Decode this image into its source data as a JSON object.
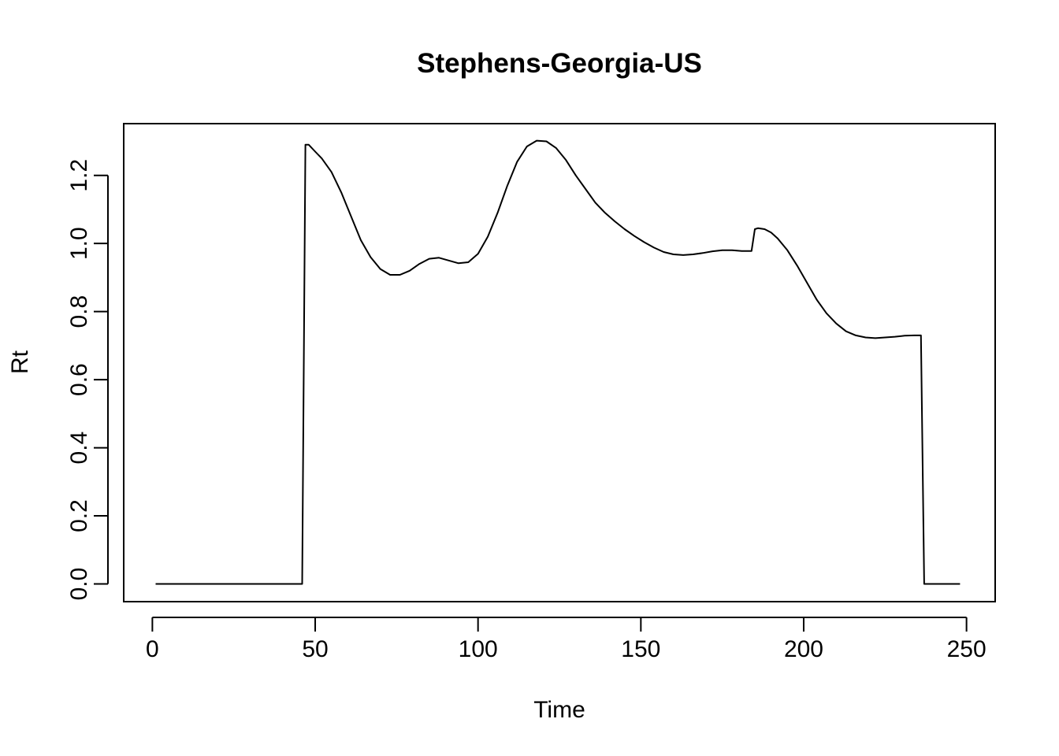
{
  "chart_data": {
    "type": "line",
    "title": "Stephens-Georgia-US",
    "xlabel": "Time",
    "ylabel": "Rt",
    "xlim": [
      -8.8,
      258.8
    ],
    "ylim": [
      -0.052,
      1.352
    ],
    "xticks": [
      0,
      50,
      100,
      150,
      200,
      250
    ],
    "yticks": [
      0.0,
      0.2,
      0.4,
      0.6,
      0.8,
      1.0,
      1.2
    ],
    "xtick_labels": [
      "0",
      "50",
      "100",
      "150",
      "200",
      "250"
    ],
    "ytick_labels": [
      "0.0",
      "0.2",
      "0.4",
      "0.6",
      "0.8",
      "1.0",
      "1.2"
    ],
    "grid": false,
    "series": [
      {
        "x": [
          1,
          46,
          47,
          48,
          50,
          52,
          55,
          58,
          61,
          64,
          67,
          70,
          73,
          76,
          79,
          82,
          85,
          88,
          91,
          94,
          97,
          100,
          103,
          106,
          109,
          112,
          115,
          118,
          121,
          124,
          127,
          130,
          133,
          136,
          139,
          142,
          145,
          148,
          151,
          154,
          157,
          160,
          163,
          166,
          169,
          172,
          175,
          178,
          181,
          184,
          185,
          186,
          188,
          190,
          192,
          195,
          198,
          201,
          204,
          207,
          210,
          213,
          216,
          219,
          222,
          225,
          228,
          231,
          234,
          236,
          237,
          240,
          244,
          248
        ],
        "y": [
          0.0,
          0.0,
          1.29,
          1.29,
          1.27,
          1.25,
          1.21,
          1.15,
          1.08,
          1.01,
          0.96,
          0.925,
          0.908,
          0.908,
          0.92,
          0.94,
          0.955,
          0.958,
          0.95,
          0.942,
          0.945,
          0.97,
          1.02,
          1.09,
          1.17,
          1.24,
          1.285,
          1.302,
          1.3,
          1.28,
          1.245,
          1.2,
          1.16,
          1.12,
          1.09,
          1.065,
          1.042,
          1.022,
          1.004,
          0.988,
          0.975,
          0.968,
          0.966,
          0.968,
          0.972,
          0.977,
          0.98,
          0.98,
          0.978,
          0.978,
          1.042,
          1.045,
          1.042,
          1.032,
          1.015,
          0.98,
          0.935,
          0.885,
          0.835,
          0.795,
          0.765,
          0.742,
          0.73,
          0.724,
          0.722,
          0.724,
          0.726,
          0.729,
          0.73,
          0.73,
          0.0,
          0.0,
          0.0,
          0.0
        ]
      }
    ]
  }
}
